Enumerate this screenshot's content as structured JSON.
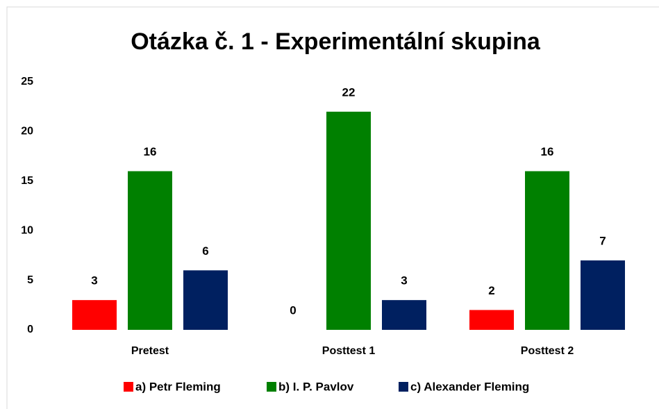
{
  "chart_data": {
    "type": "bar",
    "title": "Otázka č. 1 - Experimentální skupina",
    "categories": [
      "Pretest",
      "Posttest 1",
      "Posttest 2"
    ],
    "series": [
      {
        "name": "a) Petr Fleming",
        "color": "#ff0000",
        "values": [
          3,
          0,
          2
        ]
      },
      {
        "name": "b) I. P. Pavlov",
        "color": "#008000",
        "values": [
          16,
          22,
          16
        ]
      },
      {
        "name": "c) Alexander Fleming",
        "color": "#002060",
        "values": [
          6,
          3,
          7
        ]
      }
    ],
    "ylim": [
      0,
      25
    ],
    "yticks": [
      0,
      5,
      10,
      15,
      20,
      25
    ],
    "grid": false,
    "legend": "bottom"
  }
}
